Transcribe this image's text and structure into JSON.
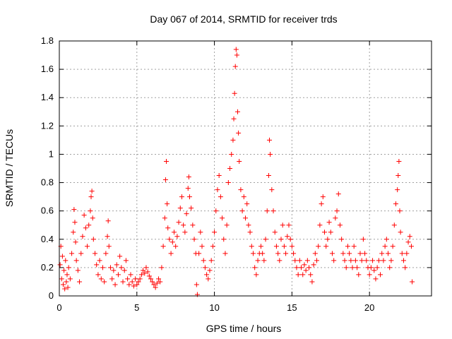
{
  "chart_data": {
    "type": "scatter",
    "title": "Day 067 of 2014, SRMTID for receiver trds",
    "xlabel": "GPS time / hours",
    "ylabel": "SRMTID / TECUs",
    "xlim": [
      0,
      24
    ],
    "ylim": [
      0,
      1.8
    ],
    "x_ticks": [
      0,
      5,
      10,
      15,
      20
    ],
    "x_tick_labels": [
      "0",
      "5",
      "10",
      "15",
      "20"
    ],
    "y_ticks": [
      0,
      0.2,
      0.4,
      0.6,
      0.8,
      1.0,
      1.2,
      1.4,
      1.6,
      1.8
    ],
    "y_tick_labels": [
      "0",
      "0.2",
      "0.4",
      "0.6",
      "0.8",
      "1",
      "1.2",
      "1.4",
      "1.6",
      "1.8"
    ],
    "grid": true,
    "marker": "plus",
    "color": "#ff0000",
    "series": [
      {
        "name": "SRMTID",
        "points": [
          [
            0.05,
            0.22
          ],
          [
            0.1,
            0.35
          ],
          [
            0.15,
            0.12
          ],
          [
            0.2,
            0.28
          ],
          [
            0.25,
            0.08
          ],
          [
            0.3,
            0.18
          ],
          [
            0.35,
            0.05
          ],
          [
            0.4,
            0.25
          ],
          [
            0.45,
            0.1
          ],
          [
            0.5,
            0.15
          ],
          [
            0.55,
            0.06
          ],
          [
            0.6,
            0.2
          ],
          [
            0.7,
            0.12
          ],
          [
            0.8,
            0.3
          ],
          [
            0.9,
            0.45
          ],
          [
            0.95,
            0.61
          ],
          [
            1.0,
            0.52
          ],
          [
            1.05,
            0.38
          ],
          [
            1.1,
            0.25
          ],
          [
            1.2,
            0.18
          ],
          [
            1.3,
            0.1
          ],
          [
            1.4,
            0.3
          ],
          [
            1.5,
            0.42
          ],
          [
            1.6,
            0.57
          ],
          [
            1.7,
            0.48
          ],
          [
            1.8,
            0.35
          ],
          [
            1.9,
            0.5
          ],
          [
            2.0,
            0.6
          ],
          [
            2.05,
            0.7
          ],
          [
            2.1,
            0.74
          ],
          [
            2.15,
            0.55
          ],
          [
            2.2,
            0.4
          ],
          [
            2.3,
            0.3
          ],
          [
            2.4,
            0.22
          ],
          [
            2.5,
            0.15
          ],
          [
            2.6,
            0.25
          ],
          [
            2.7,
            0.12
          ],
          [
            2.8,
            0.2
          ],
          [
            2.9,
            0.1
          ],
          [
            3.0,
            0.3
          ],
          [
            3.1,
            0.42
          ],
          [
            3.15,
            0.53
          ],
          [
            3.2,
            0.35
          ],
          [
            3.3,
            0.2
          ],
          [
            3.4,
            0.12
          ],
          [
            3.5,
            0.18
          ],
          [
            3.6,
            0.08
          ],
          [
            3.7,
            0.22
          ],
          [
            3.8,
            0.15
          ],
          [
            3.9,
            0.28
          ],
          [
            4.0,
            0.2
          ],
          [
            4.1,
            0.1
          ],
          [
            4.2,
            0.18
          ],
          [
            4.3,
            0.25
          ],
          [
            4.4,
            0.12
          ],
          [
            4.5,
            0.08
          ],
          [
            4.6,
            0.15
          ],
          [
            4.7,
            0.1
          ],
          [
            4.8,
            0.07
          ],
          [
            4.9,
            0.12
          ],
          [
            5.0,
            0.08
          ],
          [
            5.1,
            0.1
          ],
          [
            5.2,
            0.12
          ],
          [
            5.3,
            0.15
          ],
          [
            5.4,
            0.18
          ],
          [
            5.5,
            0.16
          ],
          [
            5.6,
            0.2
          ],
          [
            5.7,
            0.17
          ],
          [
            5.8,
            0.14
          ],
          [
            5.9,
            0.12
          ],
          [
            6.0,
            0.1
          ],
          [
            6.1,
            0.08
          ],
          [
            6.2,
            0.06
          ],
          [
            6.3,
            0.09
          ],
          [
            6.4,
            0.12
          ],
          [
            6.5,
            0.1
          ],
          [
            6.6,
            0.2
          ],
          [
            6.7,
            0.35
          ],
          [
            6.8,
            0.55
          ],
          [
            6.85,
            0.82
          ],
          [
            6.9,
            0.95
          ],
          [
            6.95,
            0.65
          ],
          [
            7.0,
            0.48
          ],
          [
            7.1,
            0.4
          ],
          [
            7.2,
            0.3
          ],
          [
            7.3,
            0.38
          ],
          [
            7.4,
            0.45
          ],
          [
            7.5,
            0.35
          ],
          [
            7.6,
            0.42
          ],
          [
            7.7,
            0.52
          ],
          [
            7.8,
            0.62
          ],
          [
            7.9,
            0.7
          ],
          [
            8.0,
            0.5
          ],
          [
            8.1,
            0.45
          ],
          [
            8.2,
            0.58
          ],
          [
            8.3,
            0.76
          ],
          [
            8.35,
            0.84
          ],
          [
            8.4,
            0.7
          ],
          [
            8.5,
            0.62
          ],
          [
            8.6,
            0.5
          ],
          [
            8.7,
            0.4
          ],
          [
            8.8,
            0.3
          ],
          [
            8.85,
            0.08
          ],
          [
            8.9,
            0.01
          ],
          [
            9.0,
            0.3
          ],
          [
            9.1,
            0.45
          ],
          [
            9.2,
            0.35
          ],
          [
            9.3,
            0.25
          ],
          [
            9.4,
            0.2
          ],
          [
            9.5,
            0.15
          ],
          [
            9.6,
            0.12
          ],
          [
            9.7,
            0.18
          ],
          [
            9.8,
            0.25
          ],
          [
            9.9,
            0.35
          ],
          [
            10.0,
            0.45
          ],
          [
            10.1,
            0.6
          ],
          [
            10.2,
            0.75
          ],
          [
            10.3,
            0.85
          ],
          [
            10.4,
            0.7
          ],
          [
            10.5,
            0.55
          ],
          [
            10.6,
            0.4
          ],
          [
            10.7,
            0.3
          ],
          [
            10.8,
            0.5
          ],
          [
            10.9,
            0.8
          ],
          [
            11.0,
            0.9
          ],
          [
            11.1,
            1.0
          ],
          [
            11.2,
            1.1
          ],
          [
            11.25,
            1.25
          ],
          [
            11.3,
            1.43
          ],
          [
            11.35,
            1.62
          ],
          [
            11.4,
            1.74
          ],
          [
            11.45,
            1.7
          ],
          [
            11.5,
            1.3
          ],
          [
            11.55,
            1.15
          ],
          [
            11.6,
            0.95
          ],
          [
            11.7,
            0.75
          ],
          [
            11.8,
            0.6
          ],
          [
            11.9,
            0.7
          ],
          [
            12.0,
            0.55
          ],
          [
            12.1,
            0.65
          ],
          [
            12.2,
            0.5
          ],
          [
            12.3,
            0.45
          ],
          [
            12.4,
            0.35
          ],
          [
            12.5,
            0.3
          ],
          [
            12.6,
            0.2
          ],
          [
            12.7,
            0.15
          ],
          [
            12.8,
            0.25
          ],
          [
            12.9,
            0.3
          ],
          [
            13.0,
            0.35
          ],
          [
            13.1,
            0.3
          ],
          [
            13.2,
            0.25
          ],
          [
            13.3,
            0.4
          ],
          [
            13.4,
            0.6
          ],
          [
            13.5,
            0.85
          ],
          [
            13.55,
            1.1
          ],
          [
            13.6,
            1.0
          ],
          [
            13.7,
            0.75
          ],
          [
            13.8,
            0.6
          ],
          [
            13.9,
            0.45
          ],
          [
            14.0,
            0.35
          ],
          [
            14.1,
            0.3
          ],
          [
            14.2,
            0.25
          ],
          [
            14.3,
            0.4
          ],
          [
            14.4,
            0.5
          ],
          [
            14.5,
            0.35
          ],
          [
            14.6,
            0.3
          ],
          [
            14.7,
            0.42
          ],
          [
            14.8,
            0.5
          ],
          [
            14.9,
            0.4
          ],
          [
            15.0,
            0.35
          ],
          [
            15.1,
            0.3
          ],
          [
            15.2,
            0.25
          ],
          [
            15.3,
            0.2
          ],
          [
            15.4,
            0.15
          ],
          [
            15.5,
            0.25
          ],
          [
            15.6,
            0.2
          ],
          [
            15.7,
            0.15
          ],
          [
            15.8,
            0.22
          ],
          [
            15.9,
            0.18
          ],
          [
            16.0,
            0.25
          ],
          [
            16.1,
            0.2
          ],
          [
            16.2,
            0.15
          ],
          [
            16.3,
            0.1
          ],
          [
            16.4,
            0.22
          ],
          [
            16.5,
            0.3
          ],
          [
            16.6,
            0.25
          ],
          [
            16.7,
            0.35
          ],
          [
            16.8,
            0.5
          ],
          [
            16.9,
            0.65
          ],
          [
            17.0,
            0.7
          ],
          [
            17.1,
            0.45
          ],
          [
            17.2,
            0.35
          ],
          [
            17.3,
            0.4
          ],
          [
            17.4,
            0.52
          ],
          [
            17.5,
            0.45
          ],
          [
            17.6,
            0.3
          ],
          [
            17.7,
            0.25
          ],
          [
            17.8,
            0.55
          ],
          [
            17.9,
            0.6
          ],
          [
            18.0,
            0.72
          ],
          [
            18.1,
            0.5
          ],
          [
            18.2,
            0.4
          ],
          [
            18.3,
            0.3
          ],
          [
            18.4,
            0.25
          ],
          [
            18.5,
            0.2
          ],
          [
            18.6,
            0.35
          ],
          [
            18.7,
            0.3
          ],
          [
            18.8,
            0.25
          ],
          [
            18.9,
            0.2
          ],
          [
            19.0,
            0.35
          ],
          [
            19.1,
            0.25
          ],
          [
            19.2,
            0.2
          ],
          [
            19.3,
            0.15
          ],
          [
            19.4,
            0.3
          ],
          [
            19.5,
            0.25
          ],
          [
            19.6,
            0.4
          ],
          [
            19.7,
            0.3
          ],
          [
            19.8,
            0.25
          ],
          [
            19.9,
            0.2
          ],
          [
            20.0,
            0.15
          ],
          [
            20.1,
            0.2
          ],
          [
            20.2,
            0.25
          ],
          [
            20.3,
            0.18
          ],
          [
            20.4,
            0.12
          ],
          [
            20.5,
            0.2
          ],
          [
            20.6,
            0.25
          ],
          [
            20.7,
            0.15
          ],
          [
            20.8,
            0.3
          ],
          [
            20.9,
            0.25
          ],
          [
            21.0,
            0.35
          ],
          [
            21.1,
            0.4
          ],
          [
            21.2,
            0.3
          ],
          [
            21.3,
            0.2
          ],
          [
            21.4,
            0.25
          ],
          [
            21.5,
            0.35
          ],
          [
            21.6,
            0.5
          ],
          [
            21.7,
            0.65
          ],
          [
            21.8,
            0.75
          ],
          [
            21.85,
            0.85
          ],
          [
            21.9,
            0.95
          ],
          [
            21.95,
            0.6
          ],
          [
            22.0,
            0.45
          ],
          [
            22.1,
            0.3
          ],
          [
            22.2,
            0.25
          ],
          [
            22.3,
            0.2
          ],
          [
            22.4,
            0.3
          ],
          [
            22.5,
            0.38
          ],
          [
            22.6,
            0.42
          ],
          [
            22.7,
            0.35
          ],
          [
            22.75,
            0.1
          ]
        ]
      }
    ]
  }
}
